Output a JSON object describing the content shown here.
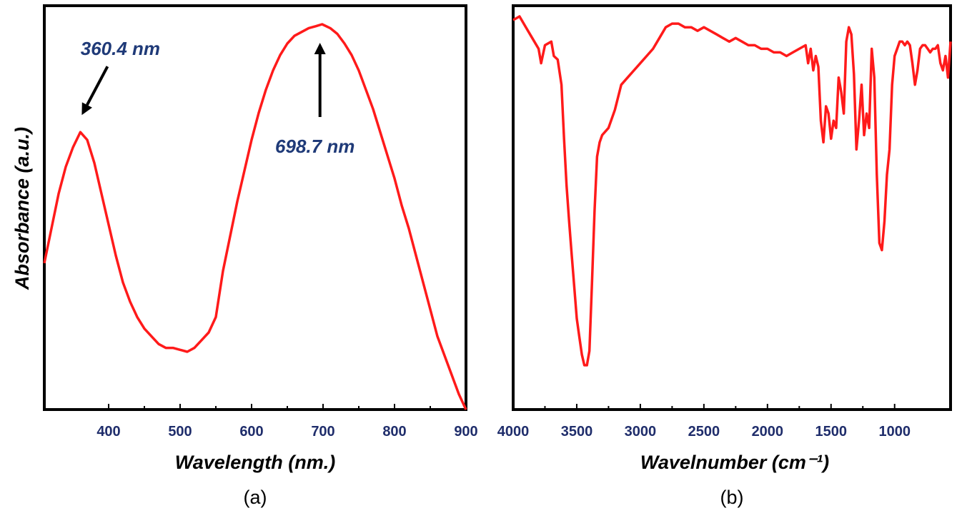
{
  "colors": {
    "line": "#ff1a1a",
    "tick_text": "#1f2d6b",
    "annotation_text": "#1f3a78",
    "axes": "#000000"
  },
  "chart_data": [
    {
      "type": "line",
      "panel": "(a)",
      "xlabel": "Wavelength (nm.)",
      "ylabel": "Absorbance (a.u.)",
      "xlim": [
        310,
        900
      ],
      "ylim": [
        0,
        1
      ],
      "x_ticks": [
        400,
        500,
        600,
        700,
        800,
        900
      ],
      "x_tick_labels": [
        "400",
        "500",
        "600",
        "700",
        "800",
        "900"
      ],
      "y_tick_labels": [],
      "grid": false,
      "series": [
        {
          "x": [
            310,
            320,
            330,
            340,
            350,
            360.4,
            370,
            380,
            390,
            400,
            410,
            420,
            430,
            440,
            450,
            460,
            470,
            480,
            490,
            500,
            510,
            520,
            530,
            540,
            550,
            560,
            570,
            580,
            590,
            600,
            610,
            620,
            630,
            640,
            650,
            660,
            670,
            680,
            690,
            698.7,
            710,
            720,
            730,
            740,
            750,
            760,
            770,
            780,
            790,
            800,
            810,
            820,
            830,
            840,
            850,
            860,
            870,
            880,
            890,
            900
          ],
          "y": [
            0.38,
            0.47,
            0.56,
            0.63,
            0.68,
            0.72,
            0.7,
            0.64,
            0.56,
            0.48,
            0.4,
            0.33,
            0.28,
            0.24,
            0.21,
            0.19,
            0.17,
            0.16,
            0.16,
            0.155,
            0.15,
            0.16,
            0.18,
            0.2,
            0.24,
            0.36,
            0.45,
            0.54,
            0.62,
            0.7,
            0.77,
            0.83,
            0.88,
            0.92,
            0.95,
            0.97,
            0.98,
            0.99,
            0.995,
            1.0,
            0.99,
            0.975,
            0.95,
            0.92,
            0.88,
            0.83,
            0.78,
            0.72,
            0.66,
            0.6,
            0.53,
            0.47,
            0.4,
            0.33,
            0.26,
            0.19,
            0.14,
            0.09,
            0.04,
            0.0
          ]
        }
      ],
      "annotations": [
        {
          "text": "360.4 nm",
          "x": 360.4
        },
        {
          "text": "698.7 nm",
          "x": 698.7
        }
      ]
    },
    {
      "type": "line",
      "panel": "(b)",
      "xlabel": "Wavelnumber (cm⁻¹)",
      "ylabel": "",
      "xlim": [
        4000,
        560
      ],
      "ylim": [
        0,
        1
      ],
      "x_ticks": [
        4000,
        3500,
        3000,
        2500,
        2000,
        1500,
        1000
      ],
      "x_tick_labels": [
        "4000",
        "3500",
        "3000",
        "2500",
        "2000",
        "1500",
        "1000"
      ],
      "y_tick_labels": [],
      "grid": false,
      "series": [
        {
          "x": [
            4000,
            3950,
            3900,
            3850,
            3800,
            3780,
            3750,
            3700,
            3680,
            3650,
            3620,
            3600,
            3580,
            3560,
            3540,
            3520,
            3500,
            3480,
            3460,
            3440,
            3420,
            3400,
            3380,
            3360,
            3340,
            3320,
            3300,
            3250,
            3200,
            3150,
            3100,
            3050,
            3000,
            2950,
            2900,
            2850,
            2800,
            2750,
            2700,
            2650,
            2600,
            2550,
            2500,
            2450,
            2400,
            2350,
            2300,
            2250,
            2200,
            2150,
            2100,
            2050,
            2000,
            1950,
            1900,
            1850,
            1800,
            1750,
            1700,
            1680,
            1660,
            1640,
            1620,
            1600,
            1580,
            1560,
            1540,
            1520,
            1500,
            1480,
            1460,
            1440,
            1420,
            1400,
            1380,
            1360,
            1340,
            1320,
            1300,
            1280,
            1260,
            1240,
            1220,
            1200,
            1180,
            1160,
            1140,
            1120,
            1110,
            1100,
            1080,
            1060,
            1040,
            1020,
            1000,
            980,
            960,
            940,
            920,
            900,
            880,
            860,
            840,
            820,
            800,
            780,
            760,
            740,
            720,
            700,
            680,
            660,
            640,
            620,
            600,
            580,
            560
          ],
          "y": [
            0.98,
            0.99,
            0.96,
            0.93,
            0.9,
            0.86,
            0.91,
            0.92,
            0.88,
            0.87,
            0.8,
            0.65,
            0.52,
            0.42,
            0.33,
            0.24,
            0.15,
            0.1,
            0.05,
            0.02,
            0.02,
            0.06,
            0.25,
            0.45,
            0.6,
            0.64,
            0.66,
            0.68,
            0.73,
            0.8,
            0.82,
            0.84,
            0.86,
            0.88,
            0.9,
            0.93,
            0.96,
            0.97,
            0.97,
            0.96,
            0.96,
            0.95,
            0.96,
            0.95,
            0.94,
            0.93,
            0.92,
            0.93,
            0.92,
            0.91,
            0.91,
            0.9,
            0.9,
            0.89,
            0.89,
            0.88,
            0.89,
            0.9,
            0.91,
            0.86,
            0.9,
            0.84,
            0.88,
            0.85,
            0.7,
            0.64,
            0.74,
            0.72,
            0.65,
            0.7,
            0.68,
            0.82,
            0.78,
            0.72,
            0.92,
            0.96,
            0.94,
            0.83,
            0.62,
            0.7,
            0.8,
            0.66,
            0.72,
            0.68,
            0.9,
            0.82,
            0.55,
            0.36,
            0.35,
            0.34,
            0.42,
            0.55,
            0.62,
            0.8,
            0.88,
            0.9,
            0.92,
            0.92,
            0.91,
            0.92,
            0.91,
            0.86,
            0.8,
            0.84,
            0.9,
            0.91,
            0.91,
            0.9,
            0.89,
            0.9,
            0.9,
            0.91,
            0.86,
            0.84,
            0.88,
            0.82,
            0.92
          ]
        }
      ],
      "annotations": []
    }
  ],
  "captions": {
    "a": "(a)",
    "b": "(b)"
  }
}
